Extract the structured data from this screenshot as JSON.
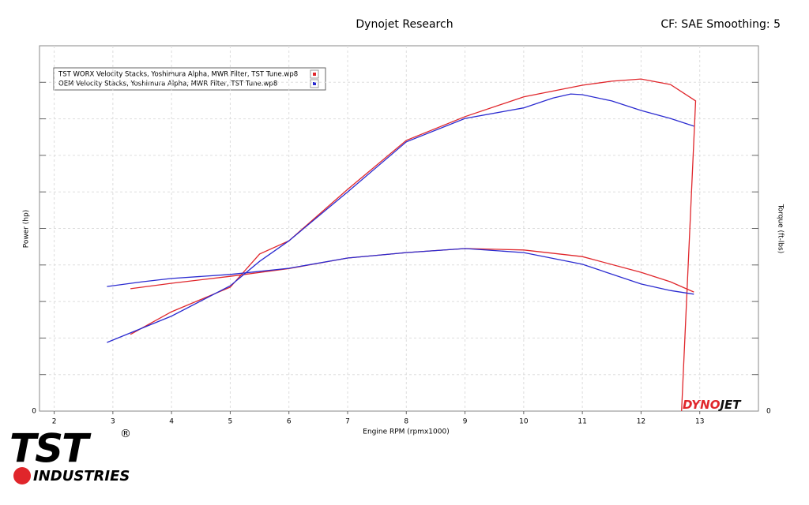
{
  "chart_data": {
    "type": "line",
    "title": "Dynojet Research",
    "subtitle": "CF: SAE Smoothing: 5",
    "x_label": "Engine RPM (rpmx1000)",
    "y_label": "Power (hp)",
    "y2_label": "Torque (ft-lbs)",
    "xlim": [
      1.75,
      14
    ],
    "xticks": [
      2,
      3,
      4,
      5,
      6,
      7,
      8,
      9,
      10,
      11,
      12,
      13
    ],
    "ylim": [
      0,
      10
    ],
    "yticks": [
      0
    ],
    "y2lim": [
      0,
      10
    ],
    "y2ticks": [
      0
    ],
    "ygrid": [
      1,
      2,
      3,
      4,
      5,
      6,
      7,
      8,
      9
    ],
    "grid": true,
    "legend": "upper left",
    "series": [
      {
        "name": "TST WORX Velocity Stacks, Yoshimura Alpha, MWR Filter, TST Tune.wp8",
        "color": "#e0262b",
        "power": {
          "x": [
            3.3,
            4,
            5,
            5.5,
            6,
            7,
            8,
            9,
            10,
            11,
            11.5,
            12,
            12.5,
            12.93,
            12.69
          ],
          "values": [
            2.1,
            2.72,
            3.39,
            4.3,
            4.66,
            6.07,
            7.41,
            8.06,
            8.6,
            8.92,
            9.03,
            9.09,
            8.94,
            8.49,
            0
          ]
        },
        "torque": {
          "axis": "y2",
          "x": [
            3.3,
            4,
            5,
            6,
            7,
            8,
            9,
            10,
            11,
            12,
            12.5,
            12.9
          ],
          "values": [
            3.35,
            3.5,
            3.69,
            3.9,
            4.19,
            4.34,
            4.45,
            4.41,
            4.23,
            3.8,
            3.54,
            3.26
          ]
        }
      },
      {
        "name": "OEM Velocity Stacks, Yoshimura Alpha, MWR Filter, TST Tune.wp8",
        "color": "#2b2bd0",
        "power": {
          "x": [
            2.9,
            4,
            5,
            5.5,
            6,
            7,
            8,
            9,
            10,
            10.5,
            10.8,
            11,
            11.5,
            12,
            12.5,
            12.9
          ],
          "values": [
            1.88,
            2.6,
            3.43,
            4.1,
            4.66,
            6.0,
            7.37,
            8.01,
            8.3,
            8.57,
            8.68,
            8.66,
            8.49,
            8.23,
            8.01,
            7.8
          ]
        },
        "torque": {
          "axis": "y2",
          "x": [
            2.9,
            3.5,
            4,
            5,
            6,
            7,
            8,
            9,
            10,
            11,
            12,
            12.5,
            12.9
          ],
          "values": [
            3.41,
            3.54,
            3.63,
            3.74,
            3.91,
            4.19,
            4.34,
            4.45,
            4.34,
            4.02,
            3.48,
            3.3,
            3.2
          ]
        }
      }
    ]
  },
  "logo": {
    "top": "TST",
    "bottom": "INDUSTRIES",
    "mark": "®"
  },
  "badge": {
    "first": "DYNO",
    "second": "JET"
  }
}
